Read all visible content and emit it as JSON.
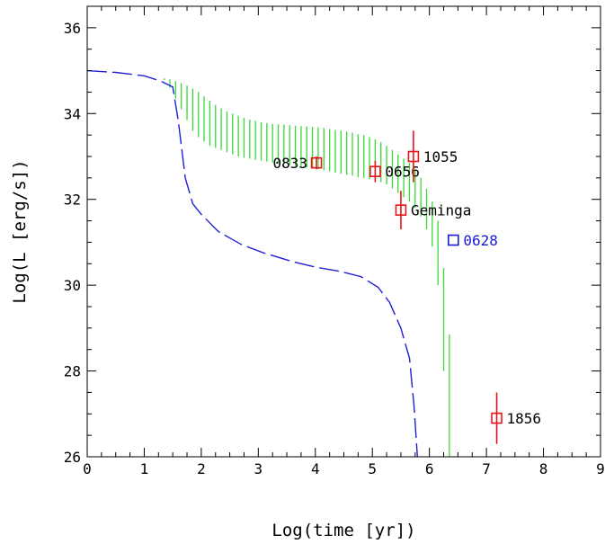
{
  "chart_data": {
    "type": "scatter",
    "xlabel": "Log(time [yr])",
    "ylabel": "Log(L [erg/s])",
    "xlim": [
      0,
      9
    ],
    "ylim": [
      26,
      36.5
    ],
    "x_ticks": [
      0,
      1,
      2,
      3,
      4,
      5,
      6,
      7,
      8,
      9
    ],
    "y_ticks": [
      26,
      28,
      30,
      32,
      34,
      36
    ],
    "grid": false,
    "colors": {
      "points_red": "#e8141b",
      "point_blue": "#1a1ad8",
      "band": "#38d838",
      "curve": "#1f1fd8"
    },
    "curve": {
      "name": "",
      "style": "dashed",
      "color": "#1f1fd8",
      "points": [
        [
          0.0,
          35.0
        ],
        [
          0.5,
          34.96
        ],
        [
          1.0,
          34.88
        ],
        [
          1.3,
          34.75
        ],
        [
          1.5,
          34.62
        ],
        [
          1.6,
          33.8
        ],
        [
          1.72,
          32.5
        ],
        [
          1.85,
          31.9
        ],
        [
          2.0,
          31.65
        ],
        [
          2.3,
          31.25
        ],
        [
          2.7,
          30.95
        ],
        [
          3.1,
          30.75
        ],
        [
          3.6,
          30.55
        ],
        [
          4.0,
          30.42
        ],
        [
          4.4,
          30.33
        ],
        [
          4.8,
          30.2
        ],
        [
          5.1,
          29.95
        ],
        [
          5.3,
          29.6
        ],
        [
          5.5,
          29.0
        ],
        [
          5.65,
          28.3
        ],
        [
          5.73,
          27.2
        ],
        [
          5.79,
          26.0
        ]
      ]
    },
    "band": {
      "name": "",
      "style": "vertical hatching",
      "color": "#38d838",
      "x": [
        1.35,
        1.45,
        1.55,
        1.65,
        1.75,
        1.85,
        1.95,
        2.05,
        2.15,
        2.25,
        2.35,
        2.45,
        2.55,
        2.65,
        2.75,
        2.85,
        2.95,
        3.05,
        3.15,
        3.25,
        3.35,
        3.45,
        3.55,
        3.65,
        3.75,
        3.85,
        3.95,
        4.05,
        4.15,
        4.25,
        4.35,
        4.45,
        4.55,
        4.65,
        4.75,
        4.85,
        4.95,
        5.05,
        5.15,
        5.25,
        5.35,
        5.45,
        5.55,
        5.65,
        5.75,
        5.85,
        5.95,
        6.05,
        6.15,
        6.25,
        6.35
      ],
      "lower": [
        34.78,
        34.6,
        34.35,
        34.1,
        33.85,
        33.6,
        33.45,
        33.35,
        33.25,
        33.2,
        33.15,
        33.1,
        33.05,
        33.0,
        32.97,
        32.95,
        32.92,
        32.9,
        32.88,
        32.86,
        32.84,
        32.82,
        32.8,
        32.78,
        32.76,
        32.74,
        32.72,
        32.7,
        32.68,
        32.65,
        32.62,
        32.6,
        32.57,
        32.55,
        32.52,
        32.5,
        32.47,
        32.45,
        32.4,
        32.35,
        32.25,
        32.15,
        32.05,
        31.95,
        31.8,
        31.6,
        31.3,
        30.9,
        30.0,
        28.0,
        26.0
      ],
      "upper": [
        34.82,
        34.8,
        34.76,
        34.71,
        34.65,
        34.58,
        34.5,
        34.4,
        34.3,
        34.2,
        34.12,
        34.05,
        34.0,
        33.95,
        33.9,
        33.86,
        33.83,
        33.8,
        33.78,
        33.76,
        33.75,
        33.74,
        33.73,
        33.72,
        33.71,
        33.7,
        33.69,
        33.68,
        33.66,
        33.64,
        33.62,
        33.6,
        33.58,
        33.55,
        33.52,
        33.5,
        33.45,
        33.4,
        33.33,
        33.25,
        33.15,
        33.05,
        32.95,
        32.85,
        32.7,
        32.5,
        32.25,
        31.95,
        31.5,
        30.4,
        28.85
      ]
    },
    "points": [
      {
        "label": "0833",
        "x": 4.02,
        "y": 32.85,
        "err": 0.15,
        "color": "#e8141b",
        "label_pos": "left"
      },
      {
        "label": "0656",
        "x": 5.05,
        "y": 32.65,
        "err": 0.25,
        "color": "#e8141b",
        "label_pos": "right"
      },
      {
        "label": "1055",
        "x": 5.72,
        "y": 33.0,
        "err": 0.6,
        "color": "#e8141b",
        "label_pos": "right"
      },
      {
        "label": "Geminga",
        "x": 5.5,
        "y": 31.75,
        "err": 0.45,
        "color": "#e8141b",
        "label_pos": "right"
      },
      {
        "label": "0628",
        "x": 6.42,
        "y": 31.05,
        "err": 0,
        "color": "#1a1ad8",
        "label_pos": "right"
      },
      {
        "label": "1856",
        "x": 7.18,
        "y": 26.9,
        "err": 0.6,
        "color": "#e8141b",
        "label_pos": "right"
      }
    ]
  }
}
